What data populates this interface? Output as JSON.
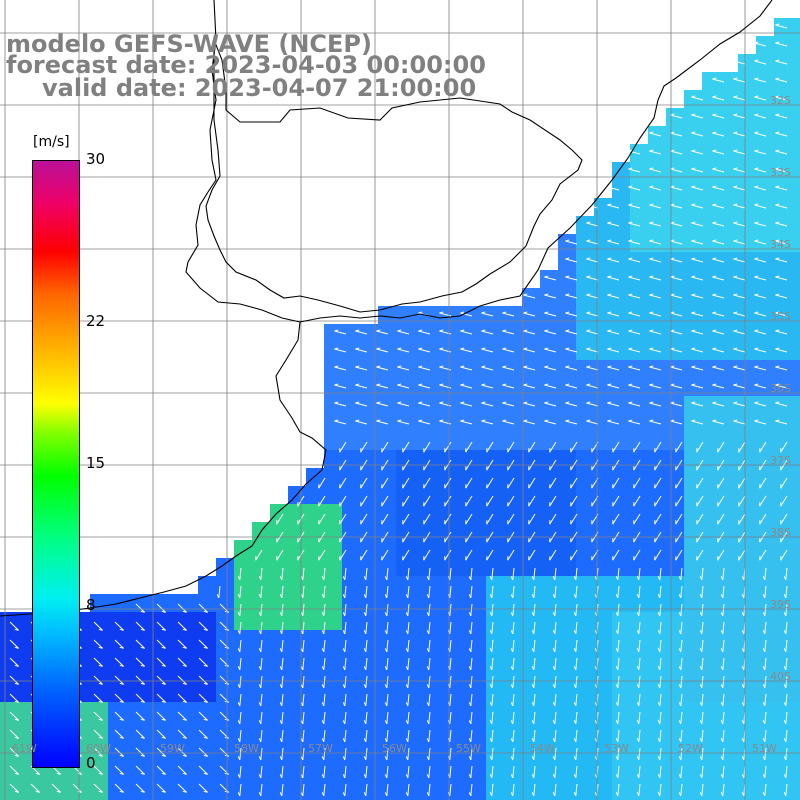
{
  "title": {
    "model": "modelo GEFS-WAVE (NCEP)",
    "forecast": "forecast date: 2023-04-03 00:00:00",
    "valid": "valid date: 2023-04-07 21:00:00"
  },
  "colorbar": {
    "unit": "[m/s]",
    "min": 0,
    "max": 30,
    "labels": [
      "30",
      "22",
      "15",
      "8",
      "0"
    ],
    "label_values": [
      30,
      22,
      15,
      8,
      0
    ]
  },
  "grid": {
    "lat_labels": [
      "32S",
      "33S",
      "34S",
      "35S",
      "36S",
      "37S",
      "38S",
      "39S",
      "40S"
    ],
    "lon_labels": [
      "61W",
      "60W",
      "59W",
      "58W",
      "57W",
      "56W",
      "55W",
      "54W",
      "53W",
      "52W",
      "51W"
    ]
  },
  "colors": {
    "background": "#ffffff",
    "title": "#808080",
    "land": "#ffffff",
    "coast": "#000000",
    "grid": "#808080",
    "arrow": "#ffffff"
  }
}
